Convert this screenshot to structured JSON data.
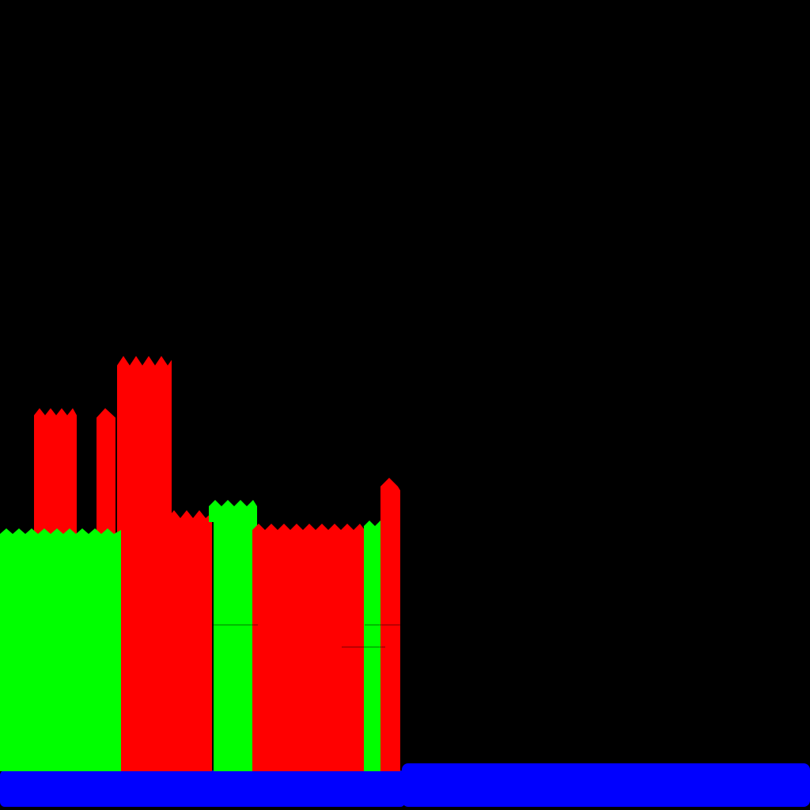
{
  "palette": {
    "background": "#000000",
    "green": "#00ff00",
    "red": "#ff0000",
    "blue": "#0000ff"
  }
}
